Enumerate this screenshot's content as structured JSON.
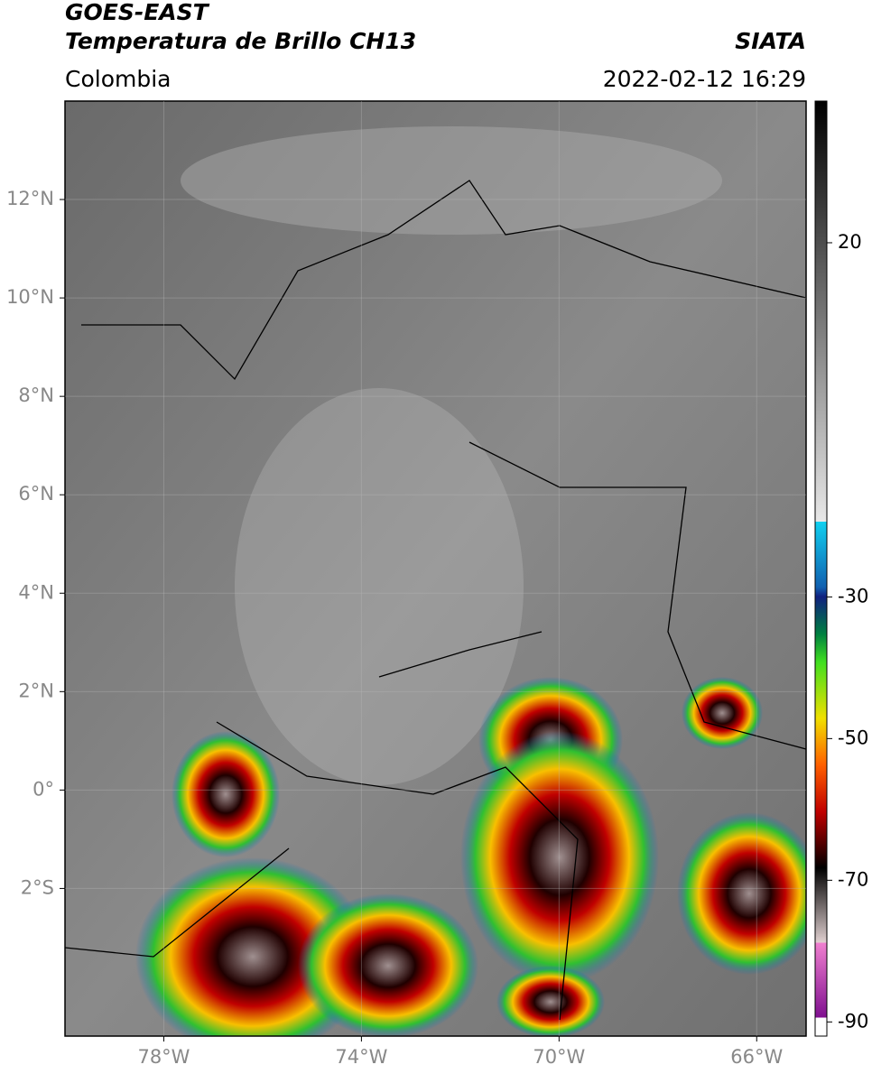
{
  "header": {
    "title": "GOES-EAST",
    "subtitle": "Temperatura de Brillo CH13",
    "source": "SIATA",
    "region": "Colombia",
    "datetime": "2022-02-12 16:29"
  },
  "chart_data": {
    "type": "map",
    "xlim": [
      -80,
      -65
    ],
    "ylim": [
      -5,
      14
    ],
    "xticks": [
      {
        "value": -78,
        "label": "78°W"
      },
      {
        "value": -74,
        "label": "74°W"
      },
      {
        "value": -70,
        "label": "70°W"
      },
      {
        "value": -66,
        "label": "66°W"
      }
    ],
    "yticks": [
      {
        "value": 12,
        "label": "12°N"
      },
      {
        "value": 10,
        "label": "10°N"
      },
      {
        "value": 8,
        "label": "8°N"
      },
      {
        "value": 6,
        "label": "6°N"
      },
      {
        "value": 4,
        "label": "4°N"
      },
      {
        "value": 2,
        "label": "2°N"
      },
      {
        "value": 0,
        "label": "0°"
      },
      {
        "value": -2,
        "label": "2°S"
      }
    ],
    "grid": true,
    "colorbar": {
      "lim": [
        -92,
        40
      ],
      "ticks": [
        20,
        -30,
        -50,
        -70,
        -90
      ]
    }
  }
}
